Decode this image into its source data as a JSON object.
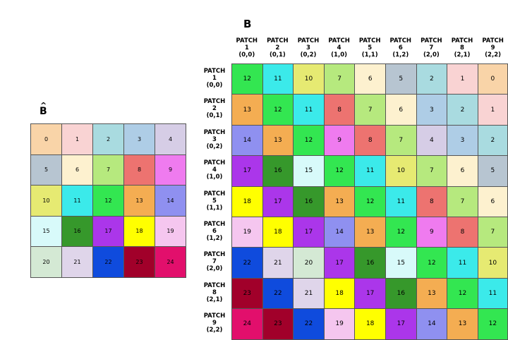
{
  "titles": {
    "b": "B",
    "b_hat": "B",
    "b_hat_hat": "^"
  },
  "col_headers": [
    "PATCH\n1\n(0,0)",
    "PATCH\n2\n(0,1)",
    "PATCH\n3\n(0,2)",
    "PATCH\n4\n(1,0)",
    "PATCH\n5\n(1,1)",
    "PATCH\n6\n(1,2)",
    "PATCH\n7\n(2,0)",
    "PATCH\n8\n(2,1)",
    "PATCH\n9\n(2,2)"
  ],
  "row_headers": [
    "PATCH\n1\n(0,0)",
    "PATCH\n2\n(0,1)",
    "PATCH\n3\n(0,2)",
    "PATCH\n4\n(1,0)",
    "PATCH\n5\n(1,1)",
    "PATCH\n6\n(1,2)",
    "PATCH\n7\n(2,0)",
    "PATCH\n8\n(2,1)",
    "PATCH\n9\n(2,2)"
  ],
  "b_matrix": [
    [
      12,
      11,
      10,
      7,
      6,
      5,
      2,
      1,
      0
    ],
    [
      13,
      12,
      11,
      8,
      7,
      6,
      3,
      2,
      1
    ],
    [
      14,
      13,
      12,
      9,
      8,
      7,
      4,
      3,
      2
    ],
    [
      17,
      16,
      15,
      12,
      11,
      10,
      7,
      6,
      5
    ],
    [
      18,
      17,
      16,
      13,
      12,
      11,
      8,
      7,
      6
    ],
    [
      19,
      18,
      17,
      14,
      13,
      12,
      9,
      8,
      7
    ],
    [
      22,
      21,
      20,
      17,
      16,
      15,
      12,
      11,
      10
    ],
    [
      23,
      22,
      21,
      18,
      17,
      16,
      13,
      12,
      11
    ],
    [
      24,
      23,
      22,
      19,
      18,
      17,
      14,
      13,
      12
    ]
  ],
  "b_hat_matrix": [
    [
      0,
      1,
      2,
      3,
      4
    ],
    [
      5,
      6,
      7,
      8,
      9
    ],
    [
      10,
      11,
      12,
      13,
      14
    ],
    [
      15,
      16,
      17,
      18,
      19
    ],
    [
      20,
      21,
      22,
      23,
      24
    ]
  ],
  "colors": {
    "0": "#f9d4a8",
    "1": "#f9d3d3",
    "2": "#a9dbe0",
    "3": "#aecde6",
    "4": "#d6cde6",
    "5": "#b7c5d1",
    "6": "#fdf1cf",
    "7": "#b6e97e",
    "8": "#ed7370",
    "9": "#ef7bef",
    "10": "#e6ea72",
    "11": "#3beaea",
    "12": "#33e651",
    "13": "#f4ad52",
    "14": "#8f90f0",
    "15": "#d8fafa",
    "16": "#36982b",
    "17": "#ab36ea",
    "18": "#ffff00",
    "19": "#f5c6ef",
    "20": "#d4e9d4",
    "21": "#dfd5ea",
    "22": "#0f4bdd",
    "23": "#a1002a",
    "24": "#e20f6c"
  }
}
